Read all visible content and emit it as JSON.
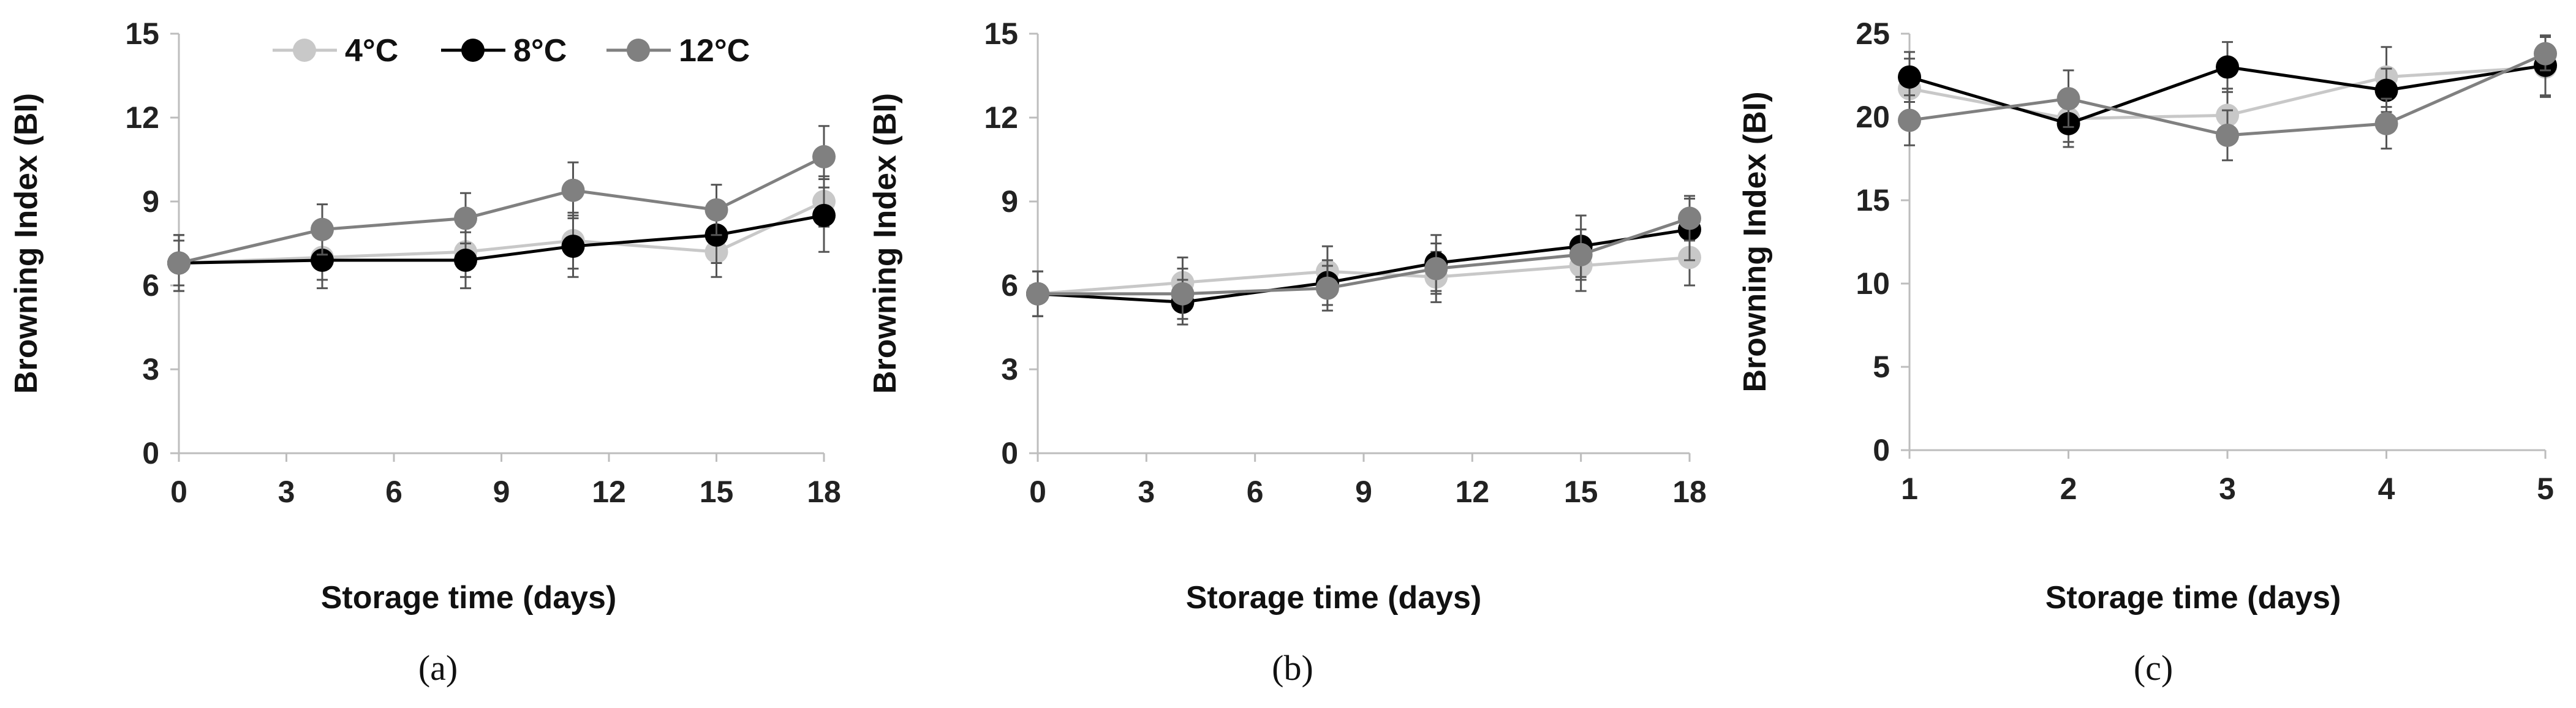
{
  "chart_data": [
    {
      "type": "line",
      "panel_label": "(a)",
      "xlabel": "Storage time (days)",
      "ylabel": "Browning Index (BI)",
      "xlim": [
        0,
        18
      ],
      "ylim": [
        0,
        15
      ],
      "xticks": [
        0,
        3,
        6,
        9,
        12,
        15,
        18
      ],
      "yticks": [
        0,
        3,
        6,
        9,
        12,
        15
      ],
      "grid": false,
      "legend": {
        "placement": "top-left",
        "visible": true
      },
      "series": [
        {
          "name": "4°C",
          "color": "#c8c8c8",
          "x": [
            0,
            4,
            8,
            11,
            15,
            18
          ],
          "y": [
            6.8,
            7.0,
            7.2,
            7.6,
            7.2,
            9.0
          ],
          "err": [
            0.8,
            0.8,
            0.9,
            1.0,
            0.9,
            0.9
          ]
        },
        {
          "name": "8°C",
          "color": "#000000",
          "x": [
            0,
            4,
            8,
            11,
            15,
            18
          ],
          "y": [
            6.8,
            6.9,
            6.9,
            7.4,
            7.8,
            8.5
          ],
          "err": [
            1.0,
            1.0,
            1.0,
            1.1,
            1.0,
            1.3
          ]
        },
        {
          "name": "12°C",
          "color": "#808080",
          "x": [
            0,
            4,
            8,
            11,
            15,
            18
          ],
          "y": [
            6.8,
            8.0,
            8.4,
            9.4,
            8.7,
            10.6
          ],
          "err": [
            1.0,
            0.9,
            0.9,
            1.0,
            0.9,
            1.1
          ]
        }
      ]
    },
    {
      "type": "line",
      "panel_label": "(b)",
      "xlabel": "Storage time (days)",
      "ylabel": "Browning Index (BI)",
      "xlim": [
        0,
        18
      ],
      "ylim": [
        0,
        15
      ],
      "xticks": [
        0,
        3,
        6,
        9,
        12,
        15,
        18
      ],
      "yticks": [
        0,
        3,
        6,
        9,
        12,
        15
      ],
      "grid": false,
      "legend": {
        "visible": false
      },
      "series": [
        {
          "name": "4°C",
          "color": "#c8c8c8",
          "x": [
            0,
            4,
            8,
            11,
            15,
            18
          ],
          "y": [
            5.7,
            6.1,
            6.5,
            6.3,
            6.7,
            7.0
          ],
          "err": [
            0.8,
            0.9,
            0.9,
            0.9,
            0.9,
            1.0
          ]
        },
        {
          "name": "8°C",
          "color": "#000000",
          "x": [
            0,
            4,
            8,
            11,
            15,
            18
          ],
          "y": [
            5.7,
            5.4,
            6.1,
            6.8,
            7.4,
            8.0
          ],
          "err": [
            0.8,
            0.8,
            0.8,
            1.0,
            1.1,
            1.1
          ]
        },
        {
          "name": "12°C",
          "color": "#808080",
          "x": [
            0,
            4,
            8,
            11,
            15,
            18
          ],
          "y": [
            5.7,
            5.7,
            5.9,
            6.6,
            7.1,
            8.4
          ],
          "err": [
            0.8,
            0.9,
            0.8,
            0.9,
            0.9,
            0.8
          ]
        }
      ]
    },
    {
      "type": "line",
      "panel_label": "(c)",
      "xlabel": "Storage time (days)",
      "ylabel": "Browning Index (BI)",
      "xlim": [
        1,
        5
      ],
      "ylim": [
        0,
        25
      ],
      "xticks": [
        1,
        2,
        3,
        4,
        5
      ],
      "yticks": [
        0,
        5,
        10,
        15,
        20,
        25
      ],
      "grid": false,
      "legend": {
        "visible": false
      },
      "series": [
        {
          "name": "4°C",
          "color": "#c8c8c8",
          "x": [
            1,
            2,
            3,
            4,
            5
          ],
          "y": [
            21.7,
            19.9,
            20.1,
            22.4,
            23.0
          ],
          "err": [
            1.8,
            1.4,
            1.6,
            1.8,
            1.8
          ]
        },
        {
          "name": "8°C",
          "color": "#000000",
          "x": [
            1,
            2,
            3,
            4,
            5
          ],
          "y": [
            22.4,
            19.6,
            23.0,
            21.6,
            23.1
          ],
          "err": [
            1.5,
            1.4,
            1.5,
            1.3,
            1.8
          ]
        },
        {
          "name": "12°C",
          "color": "#808080",
          "x": [
            1,
            2,
            3,
            4,
            5
          ],
          "y": [
            19.8,
            21.1,
            18.9,
            19.6,
            23.8
          ],
          "err": [
            1.5,
            1.7,
            1.5,
            1.5,
            1.0
          ]
        }
      ]
    }
  ]
}
